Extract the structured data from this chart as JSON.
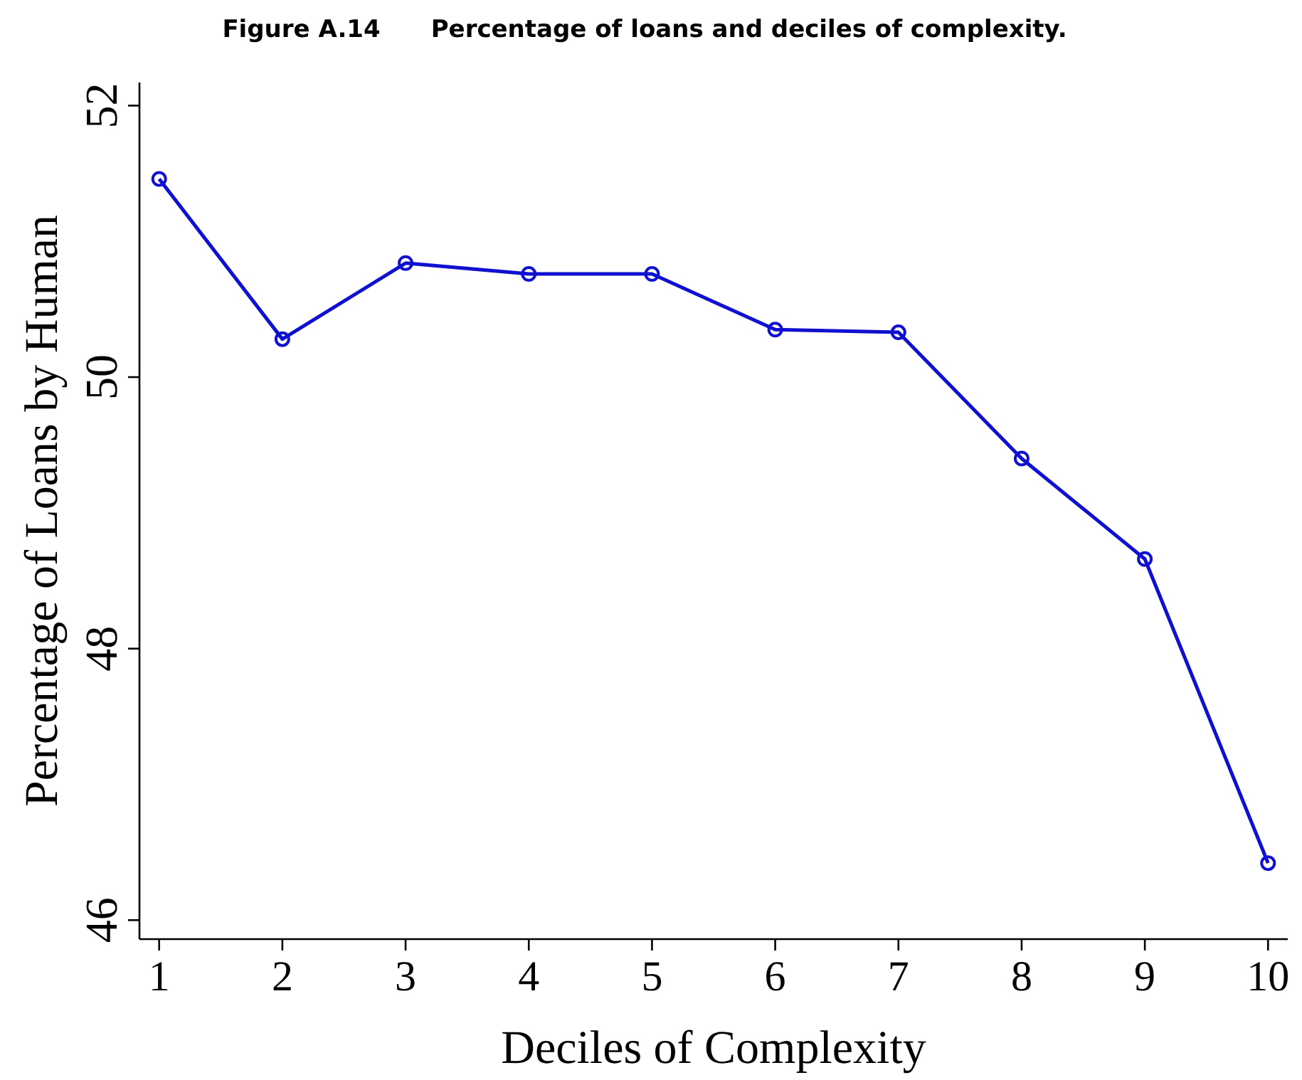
{
  "chart_data": {
    "type": "line",
    "title": "Figure A.14      Percentage of loans and deciles of complexity.",
    "xlabel": "Deciles of Complexity",
    "ylabel": "Percentage of Loans by Human",
    "x": [
      1,
      2,
      3,
      4,
      5,
      6,
      7,
      8,
      9,
      10
    ],
    "series": [
      {
        "color": "#1010d0",
        "values": [
          51.46,
          50.28,
          50.84,
          50.76,
          50.76,
          50.35,
          50.33,
          49.4,
          48.66,
          46.42
        ]
      }
    ],
    "xlim": [
      0.84,
      10.16
    ],
    "xticks": [
      1,
      2,
      3,
      4,
      5,
      6,
      7,
      8,
      9,
      10
    ],
    "ylim": [
      45.86,
      52.17
    ],
    "yticks": [
      46,
      48,
      50,
      52
    ],
    "grid": false,
    "marker": "circle",
    "line_style": "solid"
  }
}
